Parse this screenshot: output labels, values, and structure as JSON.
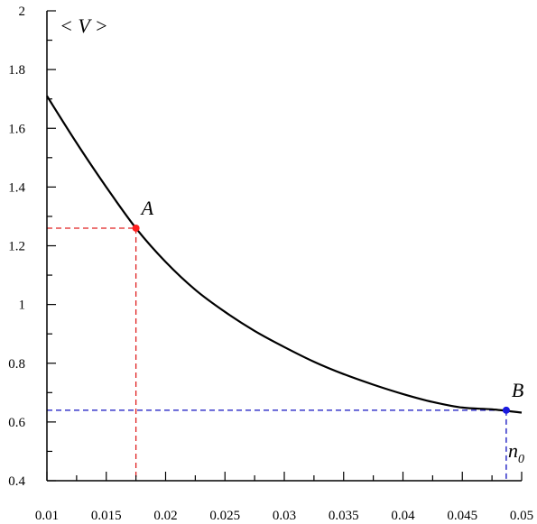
{
  "chart_data": {
    "type": "line",
    "ylabel": "< V >",
    "xlabel": "n",
    "xlabel_sub": "0",
    "xlim": [
      0.01,
      0.05
    ],
    "ylim": [
      0.4,
      2.0
    ],
    "x_ticks": [
      "0.01",
      "0.015",
      "0.02",
      "0.025",
      "0.03",
      "0.035",
      "0.04",
      "0.045",
      "0.05"
    ],
    "y_ticks": [
      "0.4",
      "0.6",
      "0.8",
      "1",
      "1.2",
      "1.4",
      "1.6",
      "1.8",
      "2"
    ],
    "grid": false,
    "series": [
      {
        "x": [
          0.01,
          0.0125,
          0.015,
          0.0175,
          0.02,
          0.0225,
          0.025,
          0.0275,
          0.03,
          0.0325,
          0.035,
          0.0375,
          0.04,
          0.0425,
          0.045,
          0.0475,
          0.05
        ],
        "y": [
          1.71,
          1.55,
          1.4,
          1.26,
          1.145,
          1.05,
          0.975,
          0.91,
          0.855,
          0.805,
          0.763,
          0.727,
          0.695,
          0.668,
          0.649,
          0.643,
          0.632
        ],
        "color": "#000000"
      }
    ],
    "points": [
      {
        "label": "A",
        "x": 0.0175,
        "y": 1.26,
        "color": "#ff2020",
        "guide_color": "#e02020"
      },
      {
        "label": "B",
        "x": 0.0487,
        "y": 0.64,
        "color": "#1a1adf",
        "guide_color": "#1010c0"
      }
    ]
  }
}
